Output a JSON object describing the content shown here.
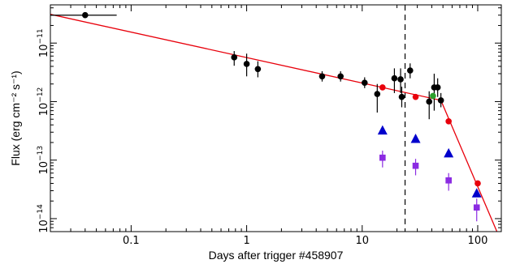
{
  "chart_data": {
    "type": "scatter",
    "xlabel": "Days after trigger #458907",
    "ylabel": "Flux (erg cm⁻² s⁻¹)",
    "x_scale": "log",
    "y_scale": "log",
    "xlim": [
      0.02,
      160
    ],
    "ylim": [
      6e-15,
      4.5e-11
    ],
    "x_ticks": [
      {
        "value": 0.1,
        "label": "0.1"
      },
      {
        "value": 1,
        "label": "1"
      },
      {
        "value": 10,
        "label": "10"
      },
      {
        "value": 100,
        "label": "100"
      }
    ],
    "y_ticks": [
      {
        "value": 1e-11,
        "base": "10",
        "exp": "−11"
      },
      {
        "value": 1e-12,
        "base": "10",
        "exp": "−12"
      },
      {
        "value": 1e-13,
        "base": "10",
        "exp": "−13"
      },
      {
        "value": 1e-14,
        "base": "10",
        "exp": "−14"
      }
    ],
    "grid": false,
    "vline": {
      "x": 23.5,
      "style": "dashed",
      "color": "#000000"
    },
    "model_line": {
      "color": "#e8000b",
      "points": [
        [
          0.02,
          3.1e-11
        ],
        [
          48,
          1.05e-12
        ],
        [
          160,
          4e-15
        ]
      ]
    },
    "series": [
      {
        "marker": "circle",
        "color": "#000000",
        "points": [
          {
            "x": 0.04,
            "y": 3e-11,
            "xerr": [
              0.02,
              0.075
            ]
          },
          {
            "x": 0.78,
            "y": 5.7e-12,
            "yerr": [
              4.1e-12,
              7.3e-12
            ]
          },
          {
            "x": 1.0,
            "y": 4.4e-12,
            "yerr": [
              2.7e-12,
              6.6e-12
            ]
          },
          {
            "x": 1.25,
            "y": 3.6e-12,
            "yerr": [
              2.6e-12,
              4.9e-12
            ]
          },
          {
            "x": 4.5,
            "y": 2.7e-12,
            "yerr": [
              2.2e-12,
              3.3e-12
            ]
          },
          {
            "x": 6.5,
            "y": 2.7e-12,
            "yerr": [
              2.2e-12,
              3.3e-12
            ]
          },
          {
            "x": 10.5,
            "y": 2.1e-12,
            "yerr": [
              1.7e-12,
              2.6e-12
            ]
          },
          {
            "x": 13.5,
            "y": 1.35e-12,
            "yerr": [
              6.5e-13,
              2e-12
            ]
          },
          {
            "x": 19.0,
            "y": 2.5e-12,
            "yerr": [
              1.4e-12,
              3.7e-12
            ]
          },
          {
            "x": 21.5,
            "y": 2.4e-12,
            "yerr": [
              1.4e-12,
              3.7e-12
            ]
          },
          {
            "x": 22.0,
            "y": 1.2e-12,
            "yerr": [
              8e-13,
              1.8e-12
            ]
          },
          {
            "x": 26.0,
            "y": 3.4e-12,
            "yerr": [
              2.5e-12,
              4.5e-12
            ]
          },
          {
            "x": 38.0,
            "y": 1e-12,
            "yerr": [
              5e-13,
              1.5e-12
            ]
          },
          {
            "x": 42.0,
            "y": 1.75e-12,
            "yerr": [
              7e-13,
              3e-12
            ]
          },
          {
            "x": 45.0,
            "y": 1.75e-12,
            "yerr": [
              1.2e-12,
              2.5e-12
            ]
          },
          {
            "x": 48.0,
            "y": 1.05e-12,
            "yerr": [
              8e-13,
              1.4e-12
            ]
          }
        ]
      },
      {
        "marker": "circle",
        "color": "#e8000b",
        "points": [
          {
            "x": 15,
            "y": 1.75e-12
          },
          {
            "x": 29,
            "y": 1.2e-12
          },
          {
            "x": 56,
            "y": 4.6e-13
          },
          {
            "x": 100,
            "y": 4e-14
          }
        ]
      },
      {
        "marker": "circle",
        "color": "#2ca02c",
        "points": [
          {
            "x": 41,
            "y": 1.25e-12
          }
        ]
      },
      {
        "marker": "triangle",
        "color": "#0000cc",
        "points": [
          {
            "x": 15,
            "y": 3.2e-13
          },
          {
            "x": 29,
            "y": 2.3e-13
          },
          {
            "x": 56,
            "y": 1.3e-13
          },
          {
            "x": 98,
            "y": 2.7e-14
          }
        ]
      },
      {
        "marker": "square",
        "color": "#8b2be2",
        "points": [
          {
            "x": 15,
            "y": 1.1e-13,
            "yerr": [
              7.5e-14,
              1.45e-13
            ]
          },
          {
            "x": 29,
            "y": 8e-14,
            "yerr": [
              5.5e-14,
              1.05e-13
            ]
          },
          {
            "x": 56,
            "y": 4.5e-14,
            "yerr": [
              3e-14,
              6e-14
            ]
          },
          {
            "x": 98,
            "y": 1.55e-14,
            "yerr": [
              9e-15,
              2.2e-14
            ]
          }
        ]
      }
    ]
  }
}
